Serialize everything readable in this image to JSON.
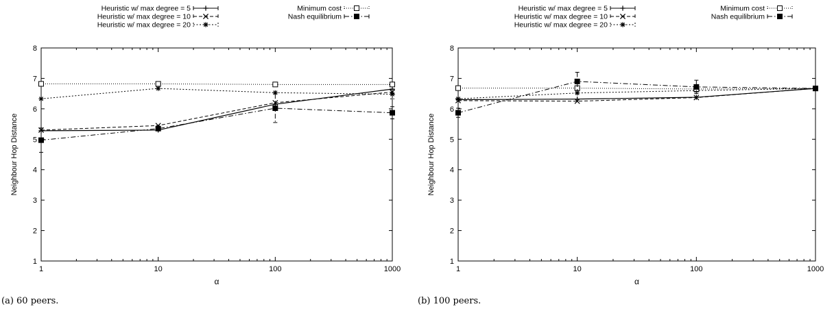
{
  "figure": {
    "captions": [
      "(a) 60 peers.",
      "(b) 100 peers."
    ]
  },
  "chart_data": [
    {
      "type": "line",
      "xscale": "log",
      "x": [
        1,
        10,
        100,
        1000
      ],
      "xticks": [
        "1",
        "10",
        "100",
        "1000"
      ],
      "yticks": [
        "1",
        "2",
        "3",
        "4",
        "5",
        "6",
        "7",
        "8"
      ],
      "xlim": [
        1,
        1000
      ],
      "ylim": [
        1,
        8
      ],
      "xlabel": "α",
      "ylabel": "Neighbour Hop Distance",
      "grid": false,
      "legend_position": "top, outside plot area",
      "series": [
        {
          "name": "Heuristic w/ max degree = 5",
          "marker": "plus",
          "dash": "solid",
          "values": [
            5.28,
            5.3,
            6.15,
            6.65
          ],
          "err": [
            0,
            0,
            0,
            0
          ]
        },
        {
          "name": "Heuristic w/ max degree = 10",
          "marker": "x",
          "dash": "dashed",
          "values": [
            5.3,
            5.45,
            6.2,
            6.55
          ],
          "err": [
            0,
            0,
            0,
            0
          ]
        },
        {
          "name": "Heuristic w/ max degree = 20",
          "marker": "star",
          "dash": "dotted",
          "values": [
            6.33,
            6.67,
            6.53,
            6.48
          ],
          "err": [
            0,
            0,
            0,
            0.15
          ]
        },
        {
          "name": "Minimum cost",
          "marker": "square-open",
          "dash": "fine-dotted",
          "values": [
            6.82,
            6.82,
            6.8,
            6.8
          ],
          "err": [
            0,
            0,
            0,
            0
          ]
        },
        {
          "name": "Nash equilibrium",
          "marker": "square-filled",
          "dash": "dash-dot",
          "values": [
            4.97,
            5.35,
            6.02,
            5.87
          ],
          "err": [
            0.4,
            0,
            0.47,
            0.2
          ]
        }
      ]
    },
    {
      "type": "line",
      "xscale": "log",
      "x": [
        1,
        10,
        100,
        1000
      ],
      "xticks": [
        "1",
        "10",
        "100",
        "1000"
      ],
      "yticks": [
        "1",
        "2",
        "3",
        "4",
        "5",
        "6",
        "7",
        "8"
      ],
      "xlim": [
        1,
        1000
      ],
      "ylim": [
        1,
        8
      ],
      "xlabel": "α",
      "ylabel": "Neighbour Hop Distance",
      "grid": false,
      "legend_position": "top, outside plot area",
      "series": [
        {
          "name": "Heuristic w/ max degree = 5",
          "marker": "plus",
          "dash": "solid",
          "values": [
            6.3,
            6.32,
            6.38,
            6.67
          ],
          "err": [
            0,
            0,
            0,
            0
          ]
        },
        {
          "name": "Heuristic w/ max degree = 10",
          "marker": "x",
          "dash": "dashed",
          "values": [
            6.27,
            6.25,
            6.37,
            6.67
          ],
          "err": [
            0,
            0,
            0,
            0
          ]
        },
        {
          "name": "Heuristic w/ max degree = 20",
          "marker": "star",
          "dash": "dotted",
          "values": [
            6.33,
            6.52,
            6.6,
            6.67
          ],
          "err": [
            0,
            0,
            0,
            0
          ]
        },
        {
          "name": "Minimum cost",
          "marker": "square-open",
          "dash": "fine-dotted",
          "values": [
            6.68,
            6.68,
            6.65,
            6.67
          ],
          "err": [
            0,
            0,
            0,
            0
          ]
        },
        {
          "name": "Nash equilibrium",
          "marker": "square-filled",
          "dash": "dash-dot",
          "values": [
            5.87,
            6.9,
            6.72,
            6.67
          ],
          "err": [
            0.15,
            0.3,
            0.22,
            0
          ]
        }
      ]
    }
  ]
}
